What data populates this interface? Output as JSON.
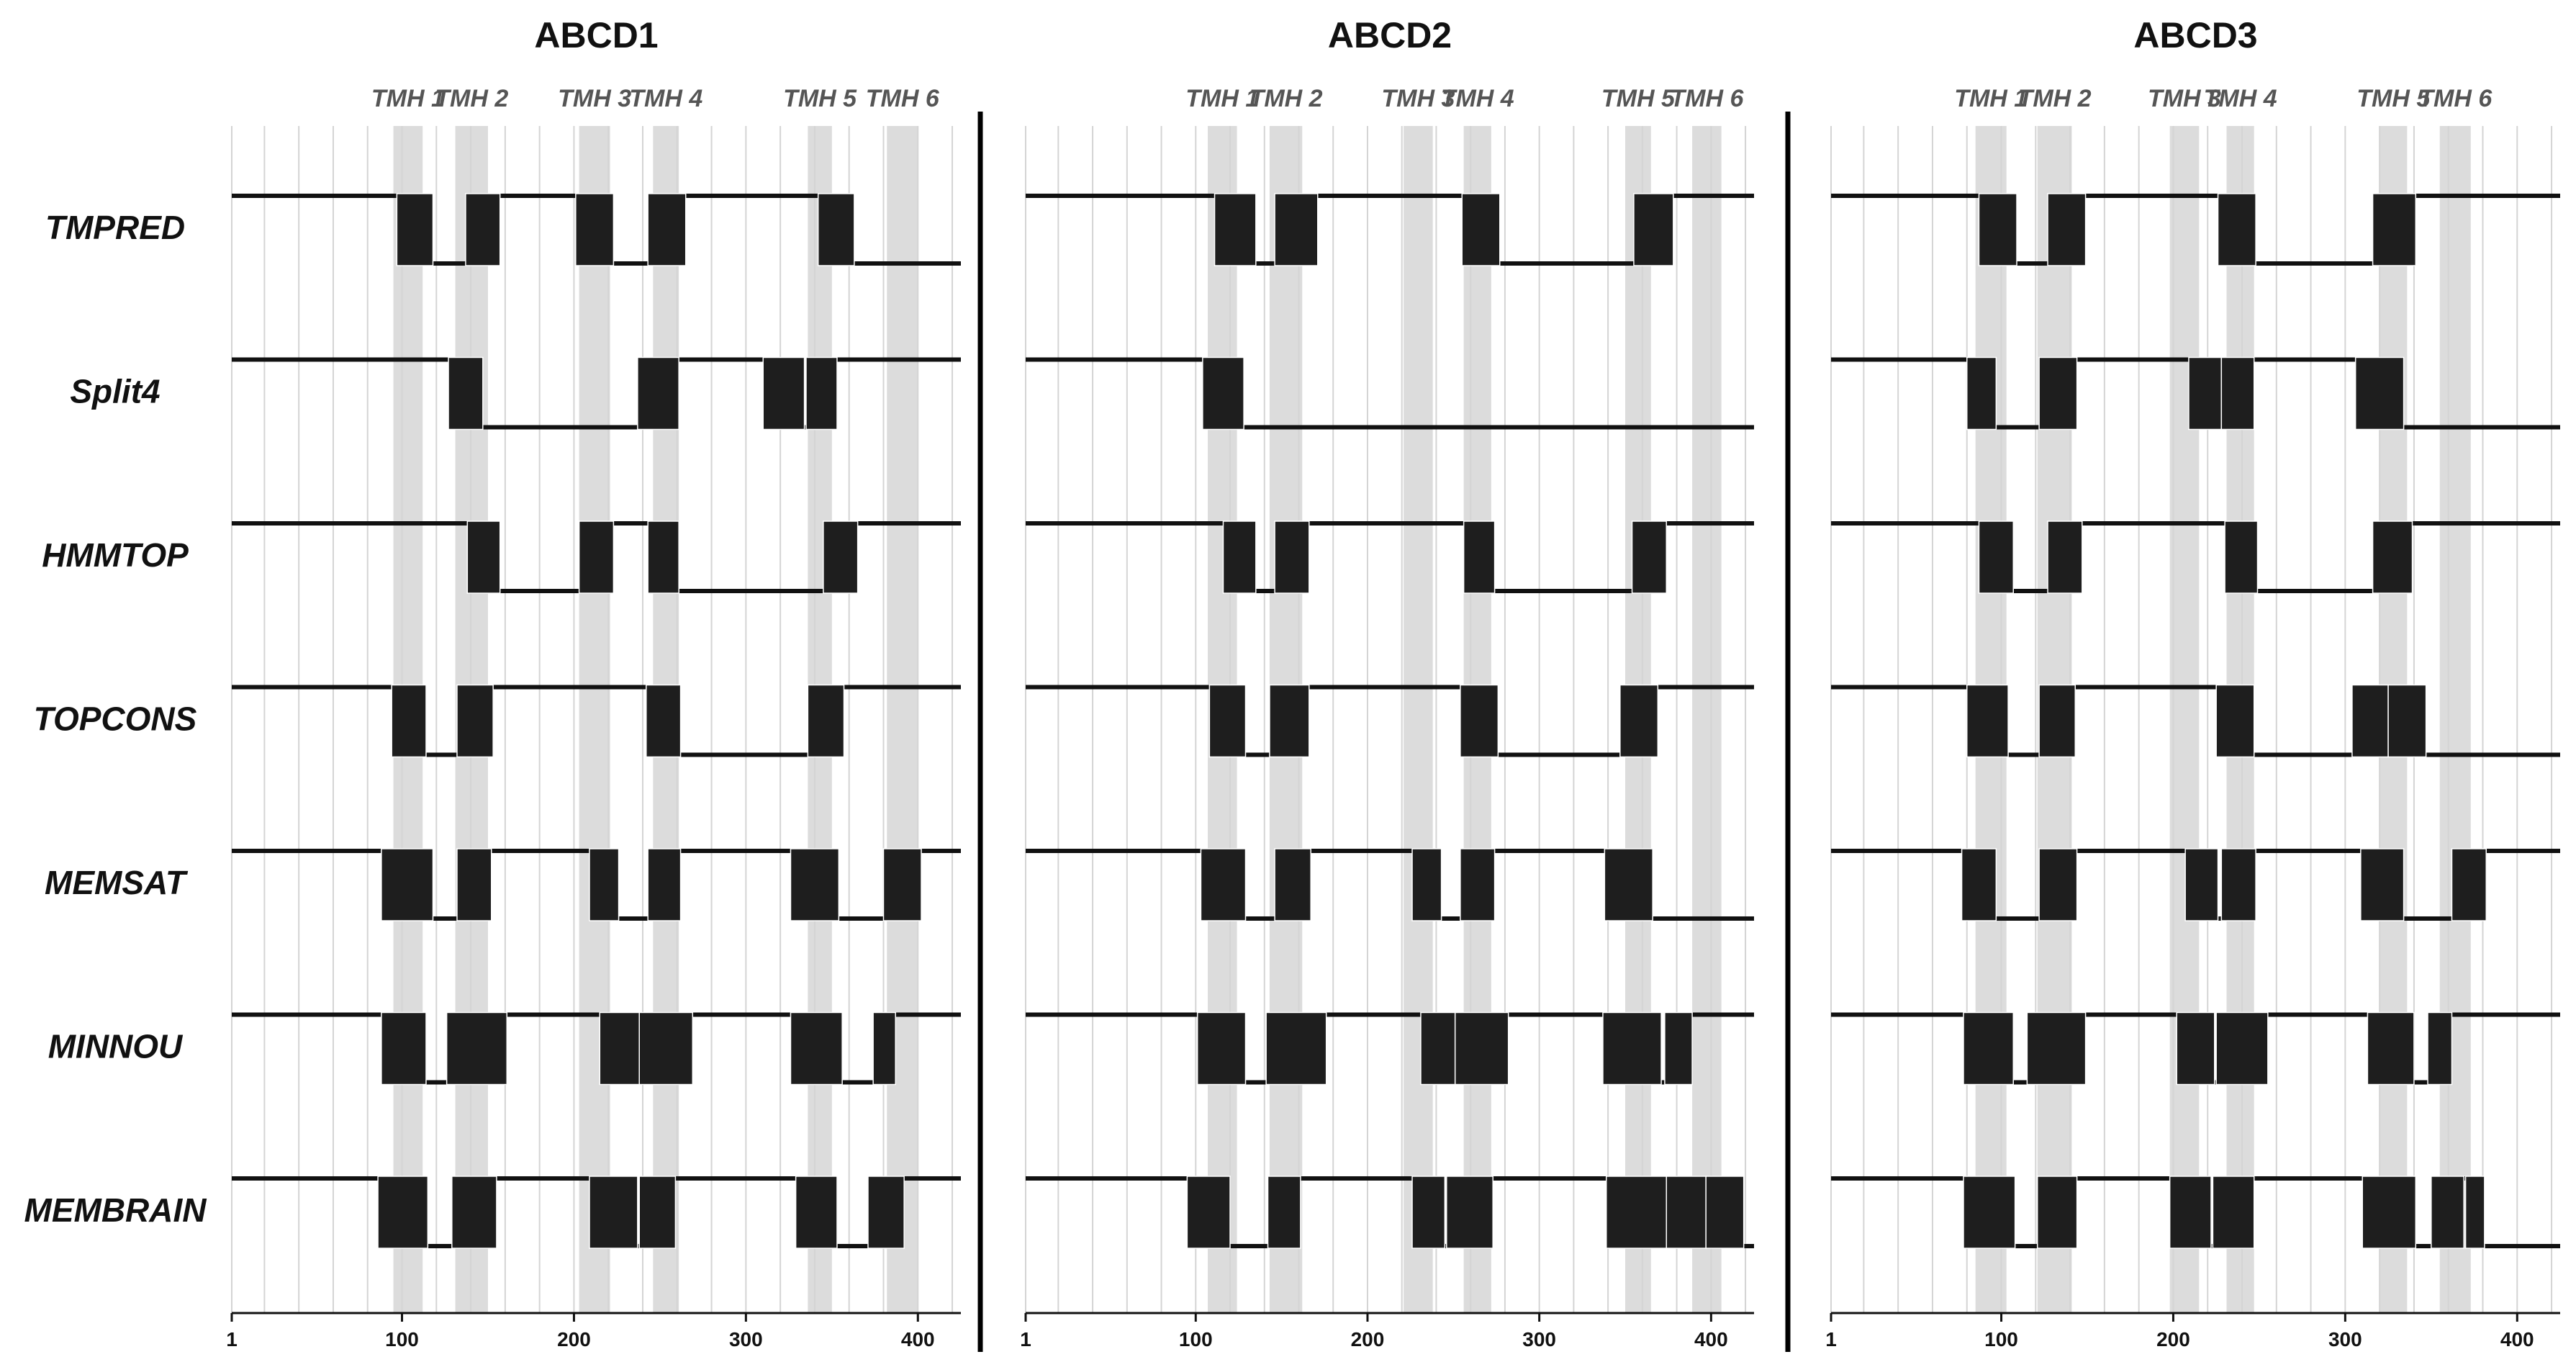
{
  "chart_data": {
    "type": "topology",
    "methods": [
      "TMPRED",
      "Split4",
      "HMMTOP",
      "TOPCONS",
      "MEMSAT",
      "MINNOU",
      "MEMBRAIN"
    ],
    "xlim": [
      1,
      425
    ],
    "x_ticks": [
      {
        "value": 1,
        "label": "1"
      },
      {
        "value": 100,
        "label": "100"
      },
      {
        "value": 200,
        "label": "200"
      },
      {
        "value": 300,
        "label": "300"
      },
      {
        "value": 400,
        "label": "400"
      }
    ],
    "grid_step": 20,
    "colors": {
      "segment": "#1e1e1e",
      "tmh_band": "#dcdcdc",
      "grid": "#d4d4d4",
      "line": "#111111"
    },
    "panels": [
      {
        "title": "ABCD1",
        "tmh": [
          {
            "label": "TMH 1",
            "start": 95,
            "end": 112
          },
          {
            "label": "TMH 2",
            "start": 131,
            "end": 150
          },
          {
            "label": "TMH 3",
            "start": 203,
            "end": 221
          },
          {
            "label": "TMH 4",
            "start": 246,
            "end": 261
          },
          {
            "label": "TMH 5",
            "start": 336,
            "end": 350
          },
          {
            "label": "TMH 6",
            "start": 382,
            "end": 400
          }
        ],
        "tracks": [
          {
            "method": "TMPRED",
            "start_side": "top",
            "end": 425,
            "segments": [
              [
                97,
                118
              ],
              [
                137,
                157
              ],
              [
                201,
                223
              ],
              [
                243,
                265
              ],
              [
                342,
                363
              ]
            ]
          },
          {
            "method": "Split4",
            "start_side": "top",
            "end": 425,
            "segments": [
              [
                127,
                147
              ],
              [
                237,
                261
              ],
              [
                310,
                334
              ],
              [
                335,
                353
              ]
            ]
          },
          {
            "method": "HMMTOP",
            "start_side": "top",
            "end": 425,
            "segments": [
              [
                138,
                157
              ],
              [
                203,
                223
              ],
              [
                243,
                261
              ],
              [
                345,
                365
              ]
            ]
          },
          {
            "method": "TOPCONS",
            "start_side": "top",
            "end": 425,
            "segments": [
              [
                94,
                114
              ],
              [
                132,
                153
              ],
              [
                242,
                262
              ],
              [
                336,
                357
              ]
            ]
          },
          {
            "method": "MEMSAT",
            "start_side": "top",
            "end": 425,
            "segments": [
              [
                88,
                118
              ],
              [
                132,
                152
              ],
              [
                209,
                226
              ],
              [
                243,
                262
              ],
              [
                326,
                354
              ],
              [
                380,
                402
              ]
            ]
          },
          {
            "method": "MINNOU",
            "start_side": "top",
            "end": 425,
            "segments": [
              [
                88,
                114
              ],
              [
                126,
                161
              ],
              [
                215,
                238
              ],
              [
                238,
                269
              ],
              [
                326,
                356
              ],
              [
                374,
                387
              ]
            ]
          },
          {
            "method": "MEMBRAIN",
            "start_side": "top",
            "end": 425,
            "segments": [
              [
                86,
                115
              ],
              [
                129,
                155
              ],
              [
                209,
                237
              ],
              [
                238,
                259
              ],
              [
                329,
                353
              ],
              [
                371,
                392
              ]
            ]
          }
        ]
      },
      {
        "title": "ABCD2",
        "tmh": [
          {
            "label": "TMH 1",
            "start": 107,
            "end": 124
          },
          {
            "label": "TMH 2",
            "start": 143,
            "end": 162
          },
          {
            "label": "TMH 3",
            "start": 221,
            "end": 238
          },
          {
            "label": "TMH 4",
            "start": 256,
            "end": 272
          },
          {
            "label": "TMH 5",
            "start": 350,
            "end": 365
          },
          {
            "label": "TMH 6",
            "start": 389,
            "end": 406
          }
        ],
        "tracks": [
          {
            "method": "TMPRED",
            "start_side": "top",
            "end": 425,
            "segments": [
              [
                111,
                135
              ],
              [
                146,
                171
              ],
              [
                255,
                277
              ],
              [
                355,
                378
              ]
            ]
          },
          {
            "method": "Split4",
            "start_side": "top",
            "end": 425,
            "segments": [
              [
                104,
                128
              ]
            ]
          },
          {
            "method": "HMMTOP",
            "start_side": "top",
            "end": 425,
            "segments": [
              [
                116,
                135
              ],
              [
                146,
                166
              ],
              [
                256,
                274
              ],
              [
                354,
                374
              ]
            ]
          },
          {
            "method": "TOPCONS",
            "start_side": "top",
            "end": 425,
            "segments": [
              [
                108,
                129
              ],
              [
                143,
                166
              ],
              [
                254,
                276
              ],
              [
                347,
                369
              ]
            ]
          },
          {
            "method": "MEMSAT",
            "start_side": "top",
            "end": 425,
            "segments": [
              [
                103,
                129
              ],
              [
                146,
                167
              ],
              [
                226,
                243
              ],
              [
                254,
                274
              ],
              [
                338,
                366
              ]
            ]
          },
          {
            "method": "MINNOU",
            "start_side": "top",
            "end": 425,
            "segments": [
              [
                101,
                129
              ],
              [
                141,
                176
              ],
              [
                231,
                251
              ],
              [
                251,
                282
              ],
              [
                337,
                371
              ],
              [
                373,
                389
              ]
            ]
          },
          {
            "method": "MEMBRAIN",
            "start_side": "top",
            "end": 425,
            "segments": [
              [
                95,
                120
              ],
              [
                142,
                161
              ],
              [
                226,
                245
              ],
              [
                246,
                273
              ],
              [
                339,
                374
              ],
              [
                374,
                397
              ],
              [
                397,
                419
              ]
            ]
          }
        ]
      },
      {
        "title": "ABCD3",
        "tmh": [
          {
            "label": "TMH 1",
            "start": 85,
            "end": 103
          },
          {
            "label": "TMH 2",
            "start": 121,
            "end": 141
          },
          {
            "label": "TMH 3",
            "start": 198,
            "end": 215
          },
          {
            "label": "TMH 4",
            "start": 231,
            "end": 247
          },
          {
            "label": "TMH 5",
            "start": 320,
            "end": 336
          },
          {
            "label": "TMH 6",
            "start": 355,
            "end": 373
          }
        ],
        "tracks": [
          {
            "method": "TMPRED",
            "start_side": "top",
            "end": 425,
            "segments": [
              [
                87,
                109
              ],
              [
                127,
                149
              ],
              [
                226,
                248
              ],
              [
                316,
                341
              ]
            ]
          },
          {
            "method": "Split4",
            "start_side": "top",
            "end": 425,
            "segments": [
              [
                80,
                97
              ],
              [
                122,
                144
              ],
              [
                209,
                228
              ],
              [
                228,
                247
              ],
              [
                306,
                334
              ]
            ]
          },
          {
            "method": "HMMTOP",
            "start_side": "top",
            "end": 425,
            "segments": [
              [
                87,
                107
              ],
              [
                127,
                147
              ],
              [
                230,
                249
              ],
              [
                316,
                339
              ]
            ]
          },
          {
            "method": "TOPCONS",
            "start_side": "top",
            "end": 425,
            "segments": [
              [
                80,
                104
              ],
              [
                122,
                143
              ],
              [
                225,
                247
              ],
              [
                304,
                325
              ],
              [
                325,
                347
              ]
            ]
          },
          {
            "method": "MEMSAT",
            "start_side": "top",
            "end": 425,
            "segments": [
              [
                77,
                97
              ],
              [
                122,
                144
              ],
              [
                207,
                226
              ],
              [
                228,
                248
              ],
              [
                309,
                334
              ],
              [
                362,
                382
              ]
            ]
          },
          {
            "method": "MINNOU",
            "start_side": "top",
            "end": 425,
            "segments": [
              [
                78,
                107
              ],
              [
                115,
                149
              ],
              [
                202,
                224
              ],
              [
                225,
                255
              ],
              [
                313,
                340
              ],
              [
                348,
                362
              ]
            ]
          },
          {
            "method": "MEMBRAIN",
            "start_side": "top",
            "end": 425,
            "segments": [
              [
                78,
                108
              ],
              [
                121,
                144
              ],
              [
                198,
                222
              ],
              [
                223,
                247
              ],
              [
                310,
                341
              ],
              [
                350,
                369
              ],
              [
                370,
                381
              ]
            ]
          }
        ]
      }
    ]
  }
}
